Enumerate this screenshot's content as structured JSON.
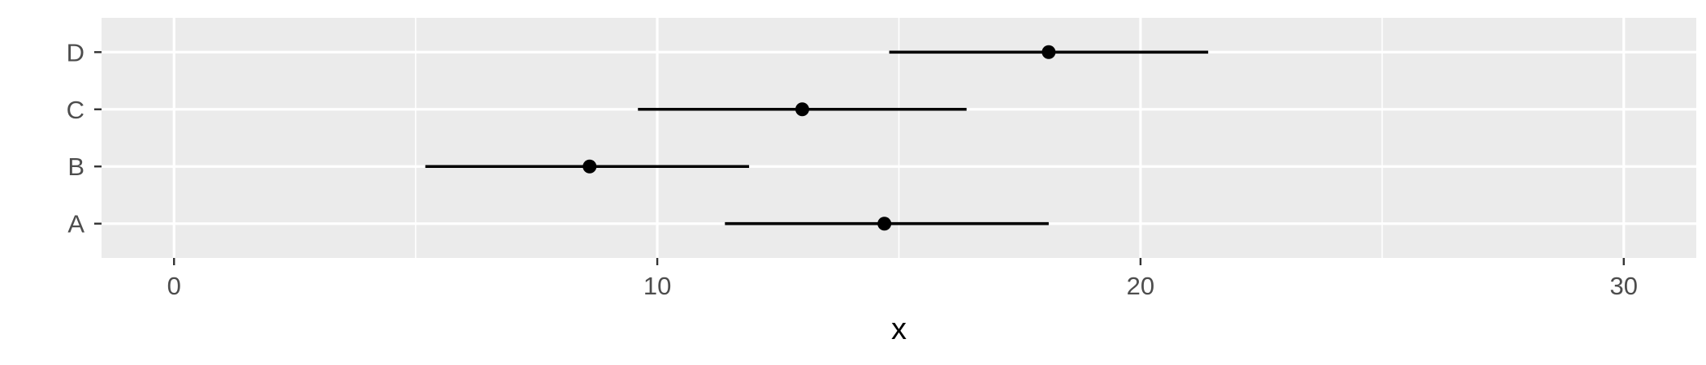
{
  "chart_data": {
    "type": "scatter",
    "subtype": "point-range",
    "title": "",
    "xlabel": "x",
    "ylabel": "",
    "xlim": [
      -1.5,
      31.5
    ],
    "x_ticks": [
      0,
      10,
      20,
      30
    ],
    "categories": [
      "A",
      "B",
      "C",
      "D"
    ],
    "points": [
      {
        "category": "A",
        "x": 14.7,
        "xmin": 11.4,
        "xmax": 18.1
      },
      {
        "category": "B",
        "x": 8.6,
        "xmin": 5.2,
        "xmax": 11.9
      },
      {
        "category": "C",
        "x": 13.0,
        "xmin": 9.6,
        "xmax": 16.4
      },
      {
        "category": "D",
        "x": 18.1,
        "xmin": 14.8,
        "xmax": 21.4
      }
    ],
    "grid": true,
    "legend": "none",
    "colors": {
      "panel": "#ebebeb",
      "grid": "#ffffff",
      "marks": "#000000",
      "tick_text": "#4d4d4d",
      "tick_mark": "#333333"
    }
  }
}
